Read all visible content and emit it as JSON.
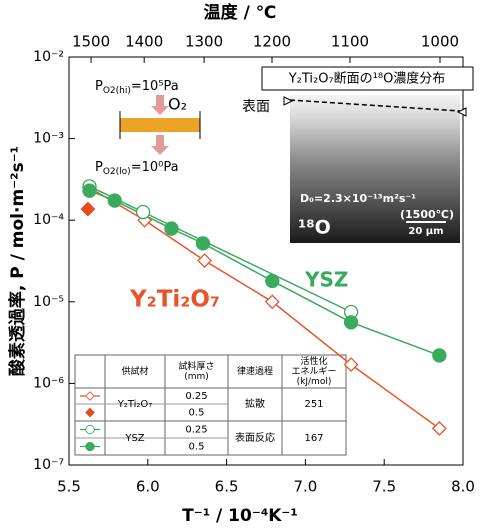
{
  "chart_data": {
    "type": "scatter",
    "log_y": true,
    "xlabel": "T⁻¹ / 10⁻⁴K⁻¹",
    "ylabel": "酸素透過率, P / mol·m⁻²s⁻¹",
    "x2label": "温度 / ℃",
    "xlim": [
      5.5,
      8.0
    ],
    "xticks": [
      5.5,
      {
        "value": 6.0,
        "label": "6.0"
      },
      6.5,
      {
        "value": 7.0,
        "label": "7.0"
      },
      7.5,
      {
        "value": 8.0,
        "label": "8.0"
      }
    ],
    "x2ticks": [
      {
        "value": 5.64,
        "label": "1500"
      },
      {
        "value": 5.977,
        "label": "1400"
      },
      {
        "value": 6.357,
        "label": "1300"
      },
      {
        "value": 6.788,
        "label": "1200"
      },
      {
        "value": 7.283,
        "label": "1100"
      },
      {
        "value": 7.854,
        "label": "1000"
      }
    ],
    "ylim": [
      1e-07,
      0.01
    ],
    "yticks": [
      {
        "value": 1e-07,
        "label": "10⁻⁷"
      },
      {
        "value": 1e-06,
        "label": "10⁻⁶"
      },
      {
        "value": 1e-05,
        "label": "10⁻⁵"
      },
      {
        "value": 0.0001,
        "label": "10⁻⁴"
      },
      {
        "value": 0.001,
        "label": "10⁻³"
      },
      {
        "value": 0.01,
        "label": "10⁻²"
      }
    ],
    "series": [
      {
        "name": "Y₂Ti₂O₇",
        "color": "#e8542a",
        "marker": "diamond",
        "filled": false,
        "line": true,
        "thickness": 0.25,
        "x": [
          5.63,
          5.98,
          6.36,
          6.79,
          7.29,
          7.85
        ],
        "values": [
          0.00025,
          0.0001,
          3.2e-05,
          1e-05,
          1.7e-06,
          2.8e-07
        ]
      },
      {
        "color": "#e84c1c",
        "marker": "diamond",
        "filled": true,
        "line": false,
        "thickness": 0.5,
        "x": [
          5.62
        ],
        "values": [
          0.000137
        ]
      },
      {
        "name": "YSZ",
        "color": "#3aaa5c",
        "marker": "circle",
        "filled": false,
        "line": true,
        "thickness": 0.25,
        "x": [
          5.63,
          5.97,
          7.29
        ],
        "values": [
          0.00026,
          0.000126,
          7.5e-06
        ]
      },
      {
        "color": "#3aaa5c",
        "marker": "circle",
        "filled": true,
        "line": true,
        "thickness": 0.5,
        "x": [
          5.63,
          5.79,
          6.15,
          6.35,
          6.79,
          7.29,
          7.85
        ],
        "values": [
          0.00023,
          0.000174,
          7.9e-05,
          5.2e-05,
          1.8e-05,
          5.6e-06,
          2.2e-06
        ]
      }
    ],
    "table": {
      "headers": [
        [
          "供試材"
        ],
        [
          "試料厚さ",
          "(mm)"
        ],
        [
          "律速過程"
        ],
        [
          "活性化",
          "エネルギー",
          "(kJ/mol)"
        ]
      ],
      "groups": [
        {
          "process": "拡散",
          "energy": 251
        },
        {
          "process": "表面反応",
          "energy": 167
        }
      ]
    },
    "diagram": {
      "p_hi": "P",
      "p_hi_sub": "O2(hi)",
      "p_hi_rest": "=10⁵Pa",
      "gas": "O₂",
      "p_lo": "P",
      "p_lo_sub": "O2(lo)",
      "p_lo_rest": "=10⁰Pa"
    },
    "inset": {
      "title": "Y₂Ti₂O₇断面の¹⁸O濃度分布",
      "surface": "表面",
      "diffusivity": "D₀=2.3×10⁻¹³m²s⁻¹",
      "temperature": "(1500℃)",
      "scale": "20 μm",
      "isotope": "¹⁸O"
    }
  }
}
